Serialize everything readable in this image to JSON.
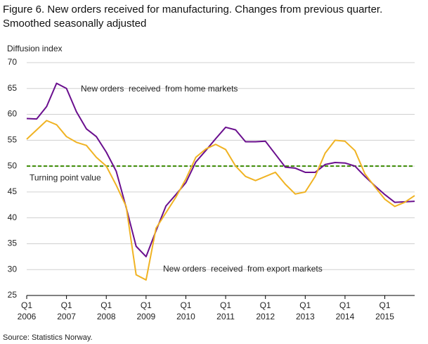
{
  "chart_data": {
    "type": "line",
    "title": "Figure 6. New orders received for manufacturing. Changes from previous quarter.",
    "subtitle": "Smoothed seasonally adjusted",
    "y_label": "Diffusion  index",
    "source": "Source: Statistics Norway.",
    "categories": [
      "Q1 2006",
      null,
      null,
      null,
      "Q1 2007",
      null,
      null,
      null,
      "Q1 2008",
      null,
      null,
      null,
      "Q1 2009",
      null,
      null,
      null,
      "Q1 2010",
      null,
      null,
      null,
      "Q1 2011",
      null,
      null,
      null,
      "Q1 2012",
      null,
      null,
      null,
      "Q1 2013",
      null,
      null,
      null,
      "Q1 2014",
      null,
      null,
      null,
      "Q1 2015",
      null,
      null,
      null
    ],
    "series": [
      {
        "name": "New orders  received  from home markets",
        "color": "#6a0f8e",
        "values": [
          59.2,
          59.1,
          61.5,
          66.0,
          65.0,
          60.5,
          57.2,
          55.7,
          52.7,
          49.0,
          42.0,
          34.5,
          32.5,
          37.5,
          42.3,
          44.5,
          46.8,
          50.8,
          53.0,
          55.3,
          57.5,
          57.0,
          54.7,
          54.7,
          54.8,
          52.3,
          49.8,
          49.6,
          48.8,
          48.8,
          50.3,
          50.7,
          50.6,
          50.0,
          48.0,
          46.2,
          44.5,
          43.0,
          43.1,
          43.2
        ]
      },
      {
        "name": "New orders  received  from export markets",
        "color": "#f0b323",
        "values": [
          55.2,
          57.0,
          58.8,
          58.0,
          55.7,
          54.6,
          54.0,
          51.7,
          50.0,
          46.3,
          42.2,
          29.0,
          28.0,
          38.0,
          41.0,
          44.0,
          47.5,
          51.7,
          53.3,
          54.2,
          53.2,
          50.0,
          48.0,
          47.2,
          48.0,
          48.8,
          46.5,
          44.6,
          45.0,
          48.0,
          52.5,
          55.0,
          54.8,
          53.0,
          48.5,
          46.0,
          43.6,
          42.2,
          43.0,
          44.3
        ]
      }
    ],
    "reference_line": {
      "value": 50,
      "label": "Turning point value",
      "color": "#3a8a00"
    },
    "ylim": [
      25,
      70
    ],
    "yticks": [
      25,
      30,
      35,
      40,
      45,
      50,
      55,
      60,
      65,
      70
    ],
    "grid": true
  }
}
